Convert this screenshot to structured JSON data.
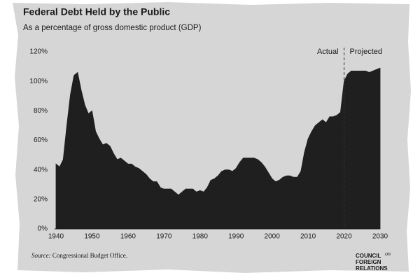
{
  "chart_data": {
    "type": "area",
    "title": "Federal Debt Held by the Public",
    "subtitle": "As a percentage of gross domestic product (GDP)",
    "x": [
      1940,
      1941,
      1942,
      1943,
      1944,
      1945,
      1946,
      1947,
      1948,
      1949,
      1950,
      1951,
      1952,
      1953,
      1954,
      1955,
      1956,
      1957,
      1958,
      1959,
      1960,
      1961,
      1962,
      1963,
      1964,
      1965,
      1966,
      1967,
      1968,
      1969,
      1970,
      1971,
      1972,
      1973,
      1974,
      1975,
      1976,
      1977,
      1978,
      1979,
      1980,
      1981,
      1982,
      1983,
      1984,
      1985,
      1986,
      1987,
      1988,
      1989,
      1990,
      1991,
      1992,
      1993,
      1994,
      1995,
      1996,
      1997,
      1998,
      1999,
      2000,
      2001,
      2002,
      2003,
      2004,
      2005,
      2006,
      2007,
      2008,
      2009,
      2010,
      2011,
      2012,
      2013,
      2014,
      2015,
      2016,
      2017,
      2018,
      2019,
      2020,
      2021,
      2022,
      2023,
      2024,
      2025,
      2026,
      2027,
      2028,
      2029,
      2030
    ],
    "values": [
      44,
      42,
      47,
      70,
      91,
      104,
      106,
      94,
      84,
      78,
      80,
      66,
      61,
      57,
      58,
      56,
      51,
      47,
      48,
      46,
      44,
      44,
      42,
      41,
      39,
      37,
      34,
      32,
      32,
      28,
      27,
      27,
      27,
      25,
      23,
      25,
      27,
      27,
      27,
      25,
      26,
      25,
      28,
      33,
      34,
      36,
      39,
      40,
      40,
      39,
      41,
      45,
      48,
      48,
      48,
      48,
      47,
      45,
      42,
      38,
      34,
      32,
      33,
      35,
      36,
      36,
      35,
      35,
      39,
      52,
      61,
      66,
      70,
      72,
      74,
      72,
      76,
      76,
      77,
      79,
      100,
      105,
      107,
      107,
      107,
      107,
      107,
      106,
      107,
      108,
      109
    ],
    "color": "#1f1f1f",
    "xlim": [
      1940,
      2030
    ],
    "xticks": [
      1940,
      1950,
      1960,
      1970,
      1980,
      1990,
      2000,
      2010,
      2020,
      2030
    ],
    "ylim": [
      0,
      120
    ],
    "yticks": [
      {
        "value": 0,
        "label": "0%"
      },
      {
        "value": 20,
        "label": "20%"
      },
      {
        "value": 40,
        "label": "40%"
      },
      {
        "value": 60,
        "label": "60%"
      },
      {
        "value": 80,
        "label": "80%"
      },
      {
        "value": 100,
        "label": "100%"
      },
      {
        "value": 120,
        "label": "120%"
      }
    ],
    "grid": false,
    "divider": {
      "x": 2020,
      "left_label": "Actual",
      "right_label": "Projected"
    },
    "source": {
      "label": "Source:",
      "text": "Congressional Budget Office."
    },
    "logo": [
      "COUNCIL",
      "on",
      "FOREIGN",
      "RELATIONS"
    ]
  }
}
